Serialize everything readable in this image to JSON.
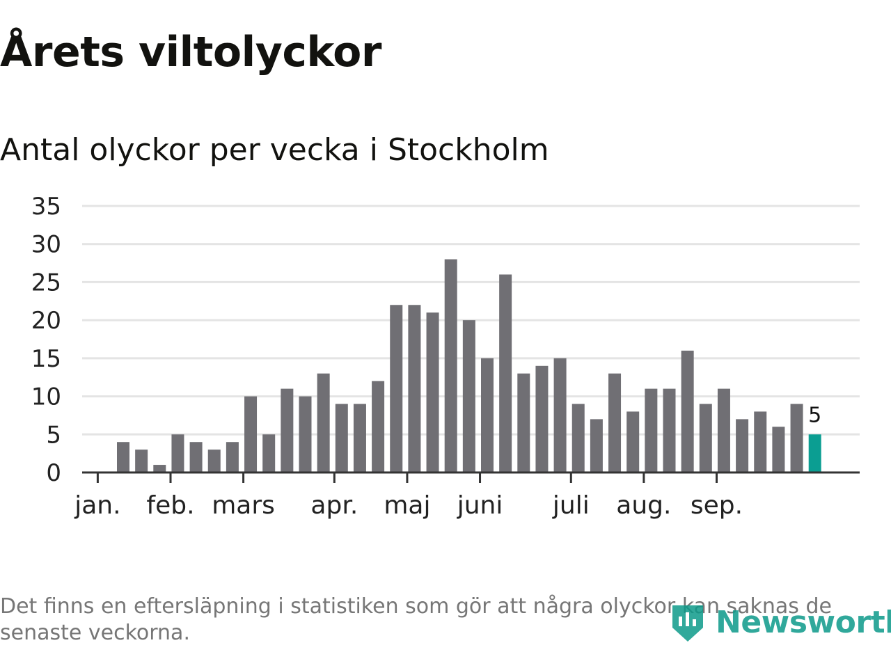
{
  "header": {
    "title": "Årets viltolyckor",
    "subtitle": "Antal olyckor per vecka i Stockholm"
  },
  "footnote": "Det finns en eftersläpning i statistiken som gör att några olyckor kan saknas de senaste veckorna.",
  "logo": {
    "text": "Newsworthy",
    "icon": "newsworthy-logo-icon"
  },
  "colors": {
    "bar": "#706f74",
    "highlight": "#0b9e92",
    "grid": "#e4e4e4",
    "axis": "#333333",
    "logo": "#0d9a8a"
  },
  "chart_data": {
    "type": "bar",
    "title": "Antal olyckor per vecka i Stockholm",
    "xlabel": "",
    "ylabel": "",
    "ylim": [
      0,
      35
    ],
    "yticks": [
      "0",
      "5",
      "10",
      "15",
      "20",
      "25",
      "30",
      "35"
    ],
    "grid": true,
    "week_count": 42,
    "first_bar_week": 3,
    "values": [
      4,
      3,
      1,
      5,
      4,
      3,
      4,
      10,
      5,
      11,
      10,
      13,
      9,
      9,
      12,
      22,
      22,
      21,
      28,
      20,
      15,
      26,
      13,
      14,
      15,
      9,
      7,
      13,
      8,
      11,
      11,
      16,
      9,
      11,
      7,
      8,
      6,
      9,
      5
    ],
    "highlight_index": 38,
    "highlight_label": "5",
    "months": [
      {
        "label": "jan.",
        "week": 1.6
      },
      {
        "label": "feb.",
        "week": 5.6
      },
      {
        "label": "mars",
        "week": 9.6
      },
      {
        "label": "apr.",
        "week": 14.6
      },
      {
        "label": "maj",
        "week": 18.6
      },
      {
        "label": "juni",
        "week": 22.6
      },
      {
        "label": "juli",
        "week": 27.6
      },
      {
        "label": "aug.",
        "week": 31.6
      },
      {
        "label": "sep.",
        "week": 35.6
      }
    ]
  }
}
